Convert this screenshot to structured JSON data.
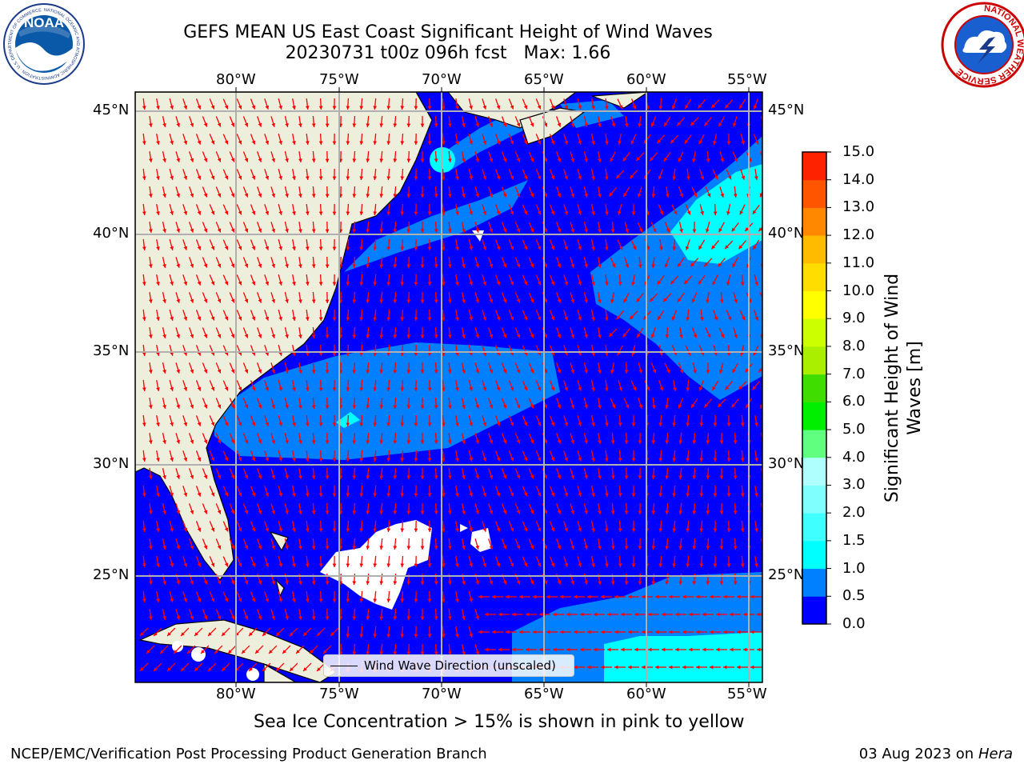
{
  "title": {
    "line1": "GEFS MEAN US East Coast Significant Height of Wind Waves",
    "line2": "20230731 t00z 096h fcst",
    "max_label": "Max: 1.66"
  },
  "logos": {
    "noaa": {
      "text": "NOAA",
      "ring_text": "NATIONAL OCEANIC AND ATMOSPHERIC ADMINISTRATION · U.S. DEPARTMENT OF COMMERCE"
    },
    "nws": {
      "ring_text": "NATIONAL WEATHER SERVICE"
    }
  },
  "axes": {
    "lon_labels": [
      "80°W",
      "75°W",
      "70°W",
      "65°W",
      "60°W",
      "55°W"
    ],
    "lat_labels": [
      "45°N",
      "40°N",
      "35°N",
      "30°N",
      "25°N"
    ]
  },
  "legend": {
    "label": "Wind Wave Direction (unscaled)"
  },
  "colorbar": {
    "label_line1": "Significant Height of Wind",
    "label_line2": "Waves [m]",
    "ticks": [
      "0.0",
      "0.5",
      "1.0",
      "1.5",
      "2.0",
      "3.0",
      "4.0",
      "5.0",
      "6.0",
      "7.0",
      "8.0",
      "9.0",
      "10.0",
      "11.0",
      "12.0",
      "13.0",
      "14.0",
      "15.0"
    ],
    "colors": [
      "#0000ff",
      "#0080ff",
      "#00ffff",
      "#40ffff",
      "#80ffff",
      "#b0ffff",
      "#60ff80",
      "#00ee00",
      "#40dd00",
      "#aaee00",
      "#ccff00",
      "#ffff00",
      "#ffdd00",
      "#ffbb00",
      "#ff8800",
      "#ff5500",
      "#ff2200"
    ]
  },
  "notes": {
    "sea_ice": "Sea Ice Concentration > 15% is shown in pink to yellow"
  },
  "footer": {
    "left": "NCEP/EMC/Verification Post Processing Product Generation Branch",
    "right_date": "03 Aug 2023 on",
    "right_machine": "Hera"
  },
  "colors": {
    "land": "#eeeedd",
    "ocean": "#0000ff",
    "arrow": "#ff0000",
    "grid": "#b0b0b0"
  }
}
